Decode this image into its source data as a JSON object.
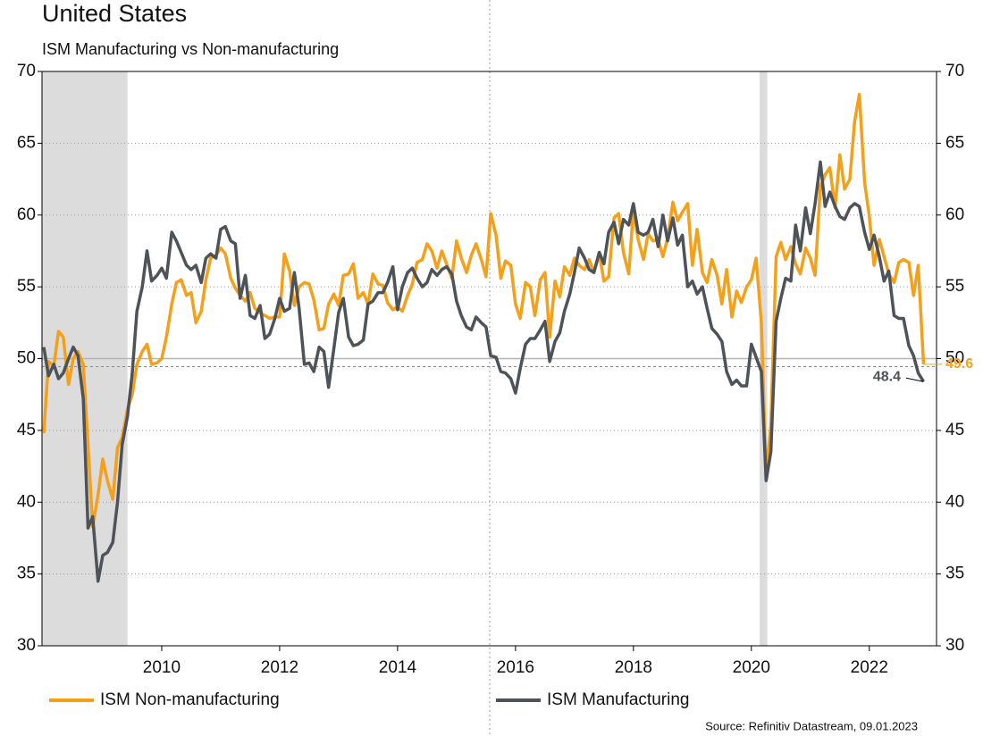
{
  "chart_data": {
    "type": "line",
    "title": "United States",
    "subtitle": "ISM Manufacturing vs Non-manufacturing",
    "source": "Source: Refinitiv Datastream, 09.01.2023",
    "xlim": [
      2007.97,
      2023.14
    ],
    "xticks": [
      2010,
      2012,
      2014,
      2016,
      2018,
      2020,
      2022
    ],
    "ylim": [
      30,
      70
    ],
    "yticks": [
      30,
      35,
      40,
      45,
      50,
      55,
      60,
      65,
      70
    ],
    "y2lim": [
      30,
      70
    ],
    "y2ticks": [
      30,
      35,
      40,
      45,
      50,
      55,
      60,
      65,
      70
    ],
    "reference_line": 50,
    "shaded_ranges": [
      [
        2007.97,
        2009.42
      ],
      [
        2020.14,
        2020.27
      ]
    ],
    "x": [
      2008.0,
      2008.08,
      2008.17,
      2008.25,
      2008.33,
      2008.42,
      2008.5,
      2008.58,
      2008.67,
      2008.75,
      2008.83,
      2008.92,
      2009.0,
      2009.08,
      2009.17,
      2009.25,
      2009.33,
      2009.42,
      2009.5,
      2009.58,
      2009.67,
      2009.75,
      2009.83,
      2009.92,
      2010.0,
      2010.08,
      2010.17,
      2010.25,
      2010.33,
      2010.42,
      2010.5,
      2010.58,
      2010.67,
      2010.75,
      2010.83,
      2010.92,
      2011.0,
      2011.08,
      2011.17,
      2011.25,
      2011.33,
      2011.42,
      2011.5,
      2011.58,
      2011.67,
      2011.75,
      2011.83,
      2011.92,
      2012.0,
      2012.08,
      2012.17,
      2012.25,
      2012.33,
      2012.42,
      2012.5,
      2012.58,
      2012.67,
      2012.75,
      2012.83,
      2012.92,
      2013.0,
      2013.08,
      2013.17,
      2013.25,
      2013.33,
      2013.42,
      2013.5,
      2013.58,
      2013.67,
      2013.75,
      2013.83,
      2013.92,
      2014.0,
      2014.08,
      2014.17,
      2014.25,
      2014.33,
      2014.42,
      2014.5,
      2014.58,
      2014.67,
      2014.75,
      2014.83,
      2014.92,
      2015.0,
      2015.08,
      2015.17,
      2015.25,
      2015.33,
      2015.42,
      2015.5,
      2015.58,
      2015.67,
      2015.75,
      2015.83,
      2015.92,
      2016.0,
      2016.08,
      2016.17,
      2016.25,
      2016.33,
      2016.42,
      2016.5,
      2016.58,
      2016.67,
      2016.75,
      2016.83,
      2016.92,
      2017.0,
      2017.08,
      2017.17,
      2017.25,
      2017.33,
      2017.42,
      2017.5,
      2017.58,
      2017.67,
      2017.75,
      2017.83,
      2017.92,
      2018.0,
      2018.08,
      2018.17,
      2018.25,
      2018.33,
      2018.42,
      2018.5,
      2018.58,
      2018.67,
      2018.75,
      2018.83,
      2018.92,
      2019.0,
      2019.08,
      2019.17,
      2019.25,
      2019.33,
      2019.42,
      2019.5,
      2019.58,
      2019.67,
      2019.75,
      2019.83,
      2019.92,
      2020.0,
      2020.08,
      2020.17,
      2020.25,
      2020.33,
      2020.42,
      2020.5,
      2020.58,
      2020.67,
      2020.75,
      2020.83,
      2020.92,
      2021.0,
      2021.08,
      2021.17,
      2021.25,
      2021.33,
      2021.42,
      2021.5,
      2021.58,
      2021.67,
      2021.75,
      2021.83,
      2021.92,
      2022.0,
      2022.08,
      2022.17,
      2022.25,
      2022.33,
      2022.42,
      2022.5,
      2022.58,
      2022.67,
      2022.75,
      2022.83,
      2022.92
    ],
    "series": [
      {
        "name": "ISM Non-manufacturing",
        "color": "#f5a01a",
        "values": [
          44.8,
          49.8,
          49.5,
          51.9,
          51.5,
          48.2,
          50.0,
          50.5,
          49.6,
          44.0,
          38.3,
          40.5,
          43.0,
          41.5,
          40.2,
          43.8,
          44.5,
          46.5,
          47.5,
          49.6,
          50.5,
          51.0,
          49.6,
          49.7,
          50.0,
          51.5,
          53.8,
          55.3,
          55.5,
          54.4,
          54.6,
          52.5,
          53.3,
          55.5,
          57.0,
          57.2,
          57.7,
          57.3,
          55.6,
          54.9,
          54.4,
          54.0,
          54.6,
          53.5,
          53.2,
          53.0,
          52.8,
          52.9,
          52.9,
          57.3,
          56.1,
          53.7,
          55.0,
          55.3,
          55.2,
          54.1,
          52.0,
          52.1,
          53.8,
          54.5,
          53.7,
          55.8,
          55.9,
          56.6,
          54.2,
          54.6,
          53.8,
          55.9,
          55.2,
          55.1,
          53.9,
          53.4,
          53.6,
          53.3,
          54.4,
          55.2,
          56.7,
          56.9,
          58.0,
          57.5,
          56.3,
          57.5,
          56.6,
          55.6,
          58.2,
          57.0,
          56.0,
          57.2,
          58.0,
          56.9,
          55.7,
          60.1,
          58.6,
          55.6,
          56.8,
          56.5,
          53.8,
          52.8,
          55.3,
          55.0,
          53.0,
          55.5,
          56.0,
          51.5,
          55.4,
          54.3,
          56.4,
          55.8,
          57.0,
          56.5,
          56.2,
          56.9,
          56.0,
          57.3,
          55.4,
          55.7,
          59.8,
          60.1,
          57.4,
          55.9,
          60.4,
          58.3,
          56.9,
          58.7,
          58.2,
          58.3,
          57.1,
          58.4,
          60.9,
          59.6,
          60.2,
          60.8,
          56.5,
          59.0,
          56.0,
          55.3,
          56.9,
          55.8,
          53.8,
          56.2,
          52.9,
          54.7,
          53.9,
          55.0,
          55.5,
          57.0,
          52.5,
          41.8,
          45.4,
          57.1,
          58.1,
          56.9,
          57.8,
          56.6,
          55.9,
          57.7,
          57.0,
          55.8,
          62.0,
          62.8,
          63.3,
          60.5,
          64.2,
          61.8,
          62.5,
          66.5,
          68.4,
          62.3,
          59.9,
          56.5,
          58.3,
          57.1,
          55.9,
          55.3,
          56.7,
          56.9,
          56.7,
          54.4,
          56.5,
          49.6
        ]
      },
      {
        "name": "ISM Manufacturing",
        "color": "#4d5358",
        "values": [
          50.8,
          48.8,
          49.6,
          48.6,
          49.0,
          50.0,
          50.8,
          50.2,
          47.2,
          38.2,
          39.0,
          34.5,
          36.3,
          36.5,
          37.2,
          40.0,
          44.0,
          46.0,
          49.0,
          53.3,
          55.0,
          57.5,
          55.4,
          55.8,
          56.3,
          55.6,
          58.8,
          58.2,
          57.4,
          56.5,
          56.2,
          56.5,
          55.3,
          57.0,
          57.3,
          57.0,
          59.0,
          59.2,
          58.2,
          58.0,
          54.2,
          55.8,
          53.0,
          52.8,
          53.7,
          51.4,
          51.7,
          52.8,
          54.2,
          53.3,
          53.5,
          56.0,
          53.5,
          49.6,
          49.7,
          49.1,
          50.8,
          50.5,
          48.0,
          50.7,
          53.2,
          54.2,
          51.5,
          50.9,
          51.0,
          51.3,
          53.8,
          54.0,
          54.6,
          54.6,
          55.3,
          56.4,
          53.4,
          55.0,
          56.0,
          56.3,
          55.6,
          55.0,
          55.3,
          56.2,
          55.8,
          56.2,
          56.4,
          55.9,
          54.0,
          53.0,
          52.2,
          52.0,
          52.9,
          52.5,
          52.2,
          50.2,
          50.1,
          49.1,
          49.0,
          48.6,
          47.6,
          49.3,
          51.0,
          51.4,
          51.4,
          52.0,
          52.6,
          49.8,
          51.2,
          51.8,
          53.3,
          54.5,
          56.0,
          57.7,
          57.0,
          56.2,
          56.0,
          57.4,
          56.6,
          58.8,
          59.5,
          58.0,
          59.7,
          59.3,
          60.8,
          58.8,
          58.6,
          58.8,
          59.7,
          57.8,
          60.0,
          58.2,
          59.8,
          57.9,
          58.6,
          55.0,
          55.4,
          54.5,
          55.0,
          53.5,
          52.1,
          51.7,
          51.2,
          49.1,
          48.2,
          48.5,
          48.1,
          48.1,
          51.0,
          50.1,
          49.1,
          41.5,
          43.5,
          52.6,
          54.2,
          55.6,
          55.4,
          59.3,
          57.5,
          60.5,
          58.7,
          60.8,
          63.7,
          60.6,
          61.6,
          60.6,
          59.9,
          59.7,
          60.5,
          60.8,
          60.6,
          58.8,
          57.6,
          58.6,
          57.1,
          55.4,
          56.1,
          53.0,
          52.8,
          52.8,
          50.9,
          50.2,
          49.0,
          48.4
        ]
      }
    ]
  }
}
